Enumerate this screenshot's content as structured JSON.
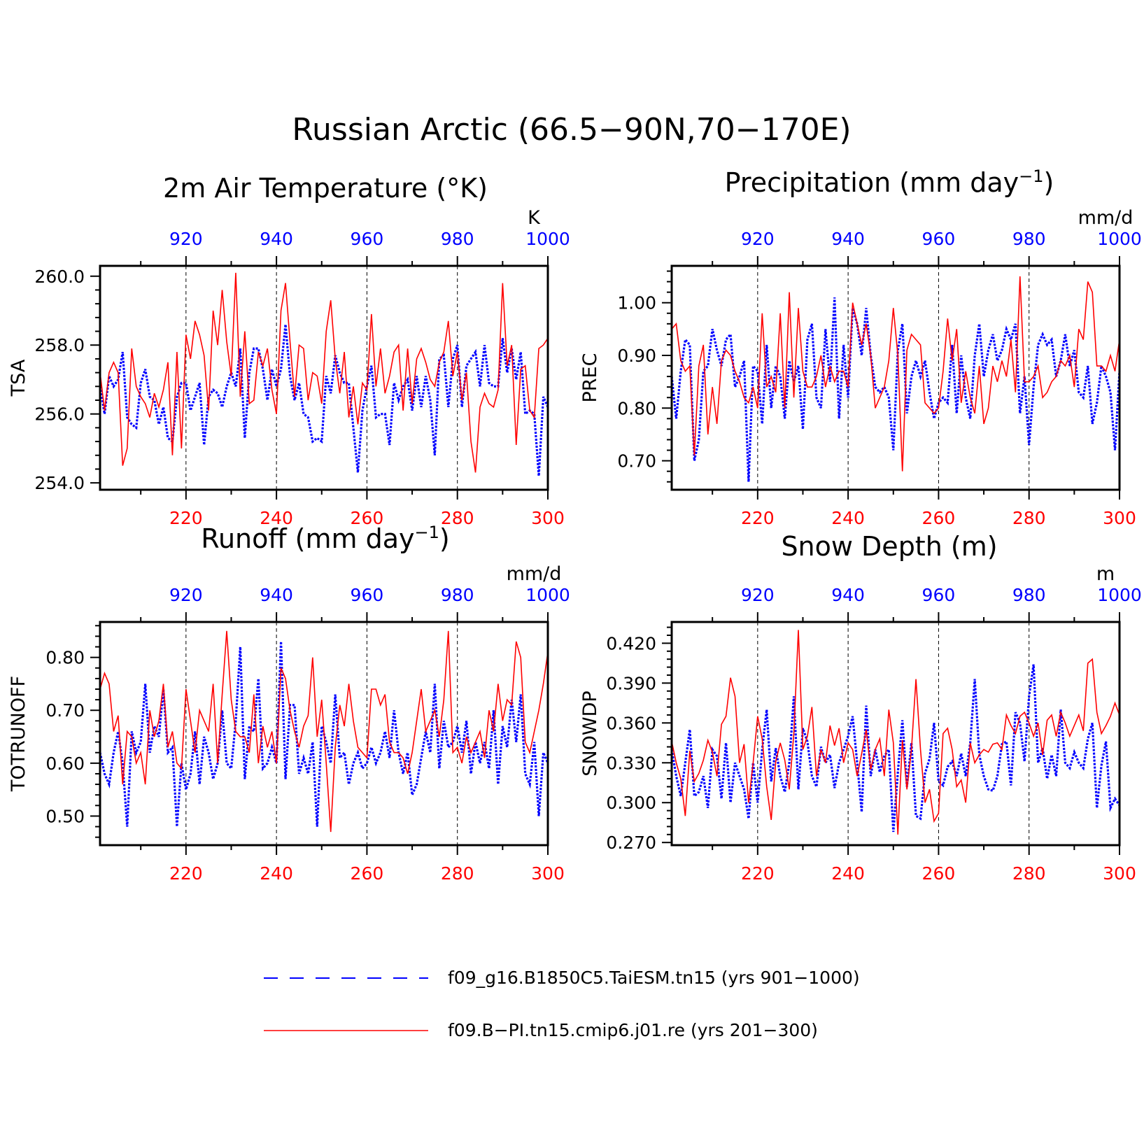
{
  "main_title": "Russian Arctic (66.5−90N,70−170E)",
  "colors": {
    "ctrl": "#0000ff",
    "case": "#ff0000",
    "axis": "#000000"
  },
  "legend": {
    "ctrl_label": "f09_g16.B1850C5.TaiESM.tn15 (yrs 901−1000)",
    "case_label": "f09.B−PI.tn15.cmip6.j01.re (yrs 201−300)"
  },
  "panels": [
    {
      "title": "2m Air Temperature (°K)",
      "ylabel": "TSA",
      "unit": "K"
    },
    {
      "title": "Precipitation (mm day",
      "title_sup": "−1",
      "title_end": ")",
      "ylabel": "PREC",
      "unit": "mm/d"
    },
    {
      "title": "Runoff (mm day",
      "title_sup": "−1",
      "title_end": ")",
      "ylabel": "TOTRUNOFF",
      "unit": "mm/d"
    },
    {
      "title": "Snow Depth (m)",
      "ylabel": "SNOWDP",
      "unit": "m"
    }
  ],
  "chart_data": [
    {
      "type": "line",
      "title": "2m Air Temperature (°K)",
      "ylabel": "TSA",
      "xlim_bottom": [
        201,
        300
      ],
      "xlim_top": [
        901,
        1000
      ],
      "ylim": [
        253.8,
        260.3
      ],
      "yticks": [
        254.0,
        256.0,
        258.0,
        260.0
      ],
      "ytick_labels": [
        "254.0",
        "256.0",
        "258.0",
        "260.0"
      ],
      "xticks_bottom": [
        220,
        240,
        260,
        280,
        300
      ],
      "xticks_top": [
        920,
        940,
        960,
        980,
        1000
      ],
      "series": [
        {
          "name": "f09_g16.B1850C5.TaiESM.tn15 (yrs 901−1000)",
          "axis": "top",
          "style": "dotted",
          "values": [
            256.8,
            256.0,
            257.1,
            256.8,
            257.0,
            257.8,
            255.9,
            255.7,
            255.6,
            256.9,
            257.3,
            256.5,
            256.4,
            255.7,
            256.2,
            255.3,
            255.2,
            256.5,
            256.9,
            256.9,
            256.1,
            256.5,
            256.9,
            255.1,
            256.5,
            256.7,
            256.6,
            256.2,
            256.8,
            257.2,
            256.8,
            257.9,
            255.3,
            257.2,
            257.9,
            257.9,
            257.3,
            256.4,
            257.3,
            256.8,
            257.3,
            258.6,
            257.1,
            256.4,
            256.9,
            256.0,
            255.9,
            255.2,
            255.3,
            255.2,
            257.1,
            256.6,
            257.7,
            257.2,
            256.9,
            256.9,
            255.6,
            254.3,
            256.1,
            256.8,
            257.4,
            255.9,
            256.0,
            256.0,
            255.1,
            256.9,
            256.4,
            256.8,
            257.0,
            256.1,
            257.1,
            256.2,
            257.1,
            256.4,
            254.8,
            257.6,
            257.7,
            256.2,
            257.6,
            258.0,
            256.2,
            257.4,
            257.6,
            257.8,
            256.8,
            258.0,
            256.9,
            256.8,
            256.8,
            258.2,
            257.2,
            257.9,
            257.0,
            257.8,
            256.0,
            256.1,
            256.0,
            254.2,
            256.5,
            256.2
          ]
        },
        {
          "name": "f09.B−PI.tn15.cmip6.j01.re (yrs 201−300)",
          "axis": "bottom",
          "style": "solid",
          "values": [
            257.2,
            256.1,
            257.2,
            257.5,
            257.2,
            254.5,
            255.0,
            257.9,
            256.8,
            256.5,
            256.3,
            255.9,
            256.6,
            256.2,
            256.7,
            257.5,
            254.8,
            257.8,
            255.0,
            258.3,
            257.6,
            258.7,
            258.3,
            257.7,
            256.1,
            259.0,
            258.0,
            259.6,
            258.1,
            257.1,
            260.1,
            256.5,
            258.4,
            256.3,
            256.4,
            257.8,
            257.4,
            257.9,
            256.7,
            256.0,
            259.0,
            259.8,
            258.1,
            256.5,
            258.0,
            257.9,
            256.4,
            257.2,
            257.1,
            256.3,
            258.4,
            259.3,
            257.6,
            256.6,
            257.8,
            255.9,
            256.8,
            255.7,
            256.9,
            256.7,
            258.9,
            256.8,
            257.9,
            256.6,
            257.1,
            257.8,
            258.0,
            256.1,
            257.9,
            256.3,
            257.6,
            257.9,
            257.5,
            257.0,
            256.8,
            257.5,
            257.8,
            258.7,
            257.1,
            257.8,
            256.4,
            257.2,
            255.2,
            254.3,
            256.2,
            256.6,
            256.3,
            256.2,
            256.7,
            259.8,
            257.4,
            258.0,
            255.1,
            257.3,
            257.4,
            256.1,
            255.9,
            257.9,
            258.0,
            258.2
          ]
        }
      ]
    },
    {
      "type": "line",
      "title": "Precipitation (mm day⁻¹)",
      "ylabel": "PREC",
      "xlim_bottom": [
        201,
        300
      ],
      "xlim_top": [
        901,
        1000
      ],
      "ylim": [
        0.645,
        1.07
      ],
      "yticks": [
        0.7,
        0.8,
        0.9,
        1.0
      ],
      "ytick_labels": [
        "0.70",
        "0.80",
        "0.90",
        "1.00"
      ],
      "xticks_bottom": [
        220,
        240,
        260,
        280,
        300
      ],
      "xticks_top": [
        920,
        940,
        960,
        980,
        1000
      ],
      "series": [
        {
          "name": "f09_g16.B1850C5.TaiESM.tn15 (yrs 901−1000)",
          "axis": "top",
          "style": "dotted",
          "values": [
            0.86,
            0.78,
            0.87,
            0.93,
            0.92,
            0.7,
            0.74,
            0.87,
            0.88,
            0.95,
            0.91,
            0.88,
            0.93,
            0.94,
            0.84,
            0.86,
            0.89,
            0.66,
            0.88,
            0.87,
            0.77,
            0.92,
            0.8,
            0.88,
            0.86,
            0.78,
            0.89,
            0.85,
            0.88,
            0.76,
            0.93,
            0.96,
            0.82,
            0.8,
            0.95,
            0.85,
            1.01,
            0.78,
            0.92,
            0.82,
            0.99,
            0.96,
            0.9,
            0.99,
            0.9,
            0.84,
            0.83,
            0.84,
            0.82,
            0.72,
            0.91,
            0.96,
            0.79,
            0.86,
            0.89,
            0.86,
            0.89,
            0.83,
            0.78,
            0.81,
            0.82,
            0.81,
            0.92,
            0.79,
            0.9,
            0.82,
            0.78,
            0.9,
            0.96,
            0.86,
            0.91,
            0.94,
            0.89,
            0.91,
            0.95,
            0.93,
            0.96,
            0.79,
            0.86,
            0.73,
            0.84,
            0.92,
            0.94,
            0.92,
            0.93,
            0.86,
            0.89,
            0.94,
            0.88,
            0.91,
            0.83,
            0.82,
            0.88,
            0.77,
            0.81,
            0.88,
            0.86,
            0.83,
            0.72,
            0.87
          ]
        },
        {
          "name": "f09.B−PI.tn15.cmip6.j01.re (yrs 201−300)",
          "axis": "bottom",
          "style": "solid",
          "values": [
            0.95,
            0.96,
            0.89,
            0.87,
            0.88,
            0.71,
            0.88,
            0.92,
            0.75,
            0.84,
            0.77,
            0.89,
            0.91,
            0.9,
            0.87,
            0.85,
            0.82,
            0.81,
            0.84,
            0.8,
            0.98,
            0.84,
            0.86,
            0.83,
            0.98,
            0.8,
            1.02,
            0.82,
            0.99,
            0.87,
            0.84,
            0.84,
            0.86,
            0.9,
            0.84,
            0.88,
            0.85,
            0.87,
            0.87,
            0.84,
            1.0,
            0.96,
            0.92,
            0.96,
            0.9,
            0.8,
            0.82,
            0.84,
            0.89,
            0.99,
            0.9,
            0.68,
            0.91,
            0.94,
            0.93,
            0.92,
            0.81,
            0.8,
            0.79,
            0.8,
            0.87,
            0.97,
            0.89,
            0.95,
            0.81,
            0.87,
            0.82,
            0.79,
            0.88,
            0.77,
            0.8,
            0.88,
            0.85,
            0.89,
            0.86,
            0.93,
            0.83,
            1.05,
            0.85,
            0.85,
            0.86,
            0.88,
            0.82,
            0.83,
            0.85,
            0.86,
            0.89,
            0.88,
            0.9,
            0.84,
            0.95,
            0.93,
            1.04,
            1.02,
            0.88,
            0.88,
            0.87,
            0.9,
            0.87,
            0.93
          ]
        }
      ]
    },
    {
      "type": "line",
      "title": "Runoff (mm day⁻¹)",
      "ylabel": "TOTRUNOFF",
      "xlim_bottom": [
        201,
        300
      ],
      "xlim_top": [
        901,
        1000
      ],
      "ylim": [
        0.445,
        0.867
      ],
      "yticks": [
        0.5,
        0.6,
        0.7,
        0.8
      ],
      "ytick_labels": [
        "0.50",
        "0.60",
        "0.70",
        "0.80"
      ],
      "xticks_bottom": [
        220,
        240,
        260,
        280,
        300
      ],
      "xticks_top": [
        920,
        940,
        960,
        980,
        1000
      ],
      "series": [
        {
          "name": "f09_g16.B1850C5.TaiESM.tn15 (yrs 901−1000)",
          "axis": "top",
          "style": "dotted",
          "values": [
            0.62,
            0.58,
            0.56,
            0.62,
            0.66,
            0.6,
            0.48,
            0.66,
            0.62,
            0.64,
            0.75,
            0.62,
            0.67,
            0.65,
            0.74,
            0.62,
            0.63,
            0.48,
            0.6,
            0.55,
            0.58,
            0.66,
            0.56,
            0.65,
            0.62,
            0.57,
            0.6,
            0.7,
            0.6,
            0.59,
            0.68,
            0.82,
            0.57,
            0.67,
            0.66,
            0.76,
            0.59,
            0.6,
            0.63,
            0.6,
            0.83,
            0.57,
            0.71,
            0.71,
            0.58,
            0.61,
            0.58,
            0.64,
            0.48,
            0.67,
            0.64,
            0.6,
            0.73,
            0.61,
            0.62,
            0.56,
            0.6,
            0.62,
            0.59,
            0.6,
            0.63,
            0.6,
            0.62,
            0.66,
            0.61,
            0.7,
            0.62,
            0.58,
            0.62,
            0.54,
            0.56,
            0.61,
            0.66,
            0.62,
            0.75,
            0.59,
            0.68,
            0.63,
            0.64,
            0.67,
            0.62,
            0.68,
            0.58,
            0.64,
            0.6,
            0.64,
            0.59,
            0.7,
            0.56,
            0.67,
            0.63,
            0.72,
            0.64,
            0.73,
            0.58,
            0.56,
            0.64,
            0.5,
            0.62,
            0.6
          ]
        },
        {
          "name": "f09.B−PI.tn15.cmip6.j01.re (yrs 201−300)",
          "axis": "bottom",
          "style": "solid",
          "values": [
            0.74,
            0.77,
            0.75,
            0.66,
            0.69,
            0.56,
            0.66,
            0.65,
            0.6,
            0.62,
            0.56,
            0.7,
            0.65,
            0.68,
            0.75,
            0.63,
            0.66,
            0.6,
            0.59,
            0.74,
            0.68,
            0.62,
            0.7,
            0.68,
            0.66,
            0.75,
            0.6,
            0.73,
            0.85,
            0.72,
            0.66,
            0.65,
            0.65,
            0.62,
            0.73,
            0.6,
            0.67,
            0.63,
            0.66,
            0.6,
            0.78,
            0.76,
            0.7,
            0.66,
            0.63,
            0.67,
            0.69,
            0.8,
            0.65,
            0.72,
            0.6,
            0.47,
            0.63,
            0.71,
            0.67,
            0.75,
            0.68,
            0.63,
            0.62,
            0.61,
            0.74,
            0.74,
            0.71,
            0.73,
            0.64,
            0.62,
            0.62,
            0.61,
            0.58,
            0.62,
            0.68,
            0.74,
            0.66,
            0.68,
            0.7,
            0.65,
            0.72,
            0.85,
            0.62,
            0.63,
            0.6,
            0.65,
            0.62,
            0.64,
            0.66,
            0.61,
            0.7,
            0.66,
            0.75,
            0.68,
            0.72,
            0.71,
            0.83,
            0.8,
            0.64,
            0.62,
            0.66,
            0.7,
            0.75,
            0.81
          ]
        }
      ]
    },
    {
      "type": "line",
      "title": "Snow Depth (m)",
      "ylabel": "SNOWDP",
      "xlim_bottom": [
        201,
        300
      ],
      "xlim_top": [
        901,
        1000
      ],
      "ylim": [
        0.268,
        0.436
      ],
      "yticks": [
        0.27,
        0.3,
        0.33,
        0.36,
        0.39,
        0.42
      ],
      "ytick_labels": [
        "0.270",
        "0.300",
        "0.330",
        "0.360",
        "0.390",
        "0.420"
      ],
      "xticks_bottom": [
        220,
        240,
        260,
        280,
        300
      ],
      "xticks_top": [
        920,
        940,
        960,
        980,
        1000
      ],
      "series": [
        {
          "name": "f09_g16.B1850C5.TaiESM.tn15 (yrs 901−1000)",
          "axis": "top",
          "style": "dotted",
          "values": [
            0.34,
            0.32,
            0.305,
            0.33,
            0.355,
            0.305,
            0.308,
            0.32,
            0.296,
            0.34,
            0.335,
            0.303,
            0.345,
            0.3,
            0.33,
            0.32,
            0.31,
            0.288,
            0.33,
            0.3,
            0.34,
            0.37,
            0.316,
            0.341,
            0.32,
            0.308,
            0.33,
            0.38,
            0.31,
            0.356,
            0.346,
            0.32,
            0.312,
            0.342,
            0.33,
            0.336,
            0.311,
            0.33,
            0.34,
            0.35,
            0.365,
            0.33,
            0.293,
            0.373,
            0.32,
            0.34,
            0.323,
            0.335,
            0.34,
            0.278,
            0.323,
            0.362,
            0.312,
            0.345,
            0.29,
            0.288,
            0.322,
            0.333,
            0.36,
            0.316,
            0.313,
            0.327,
            0.331,
            0.32,
            0.337,
            0.32,
            0.345,
            0.393,
            0.336,
            0.32,
            0.31,
            0.309,
            0.32,
            0.344,
            0.346,
            0.313,
            0.368,
            0.36,
            0.331,
            0.38,
            0.404,
            0.33,
            0.341,
            0.318,
            0.336,
            0.32,
            0.37,
            0.33,
            0.326,
            0.338,
            0.33,
            0.326,
            0.348,
            0.36,
            0.296,
            0.328,
            0.346,
            0.296,
            0.303,
            0.298
          ]
        },
        {
          "name": "f09.B−PI.tn15.cmip6.j01.re (yrs 201−300)",
          "axis": "bottom",
          "style": "solid",
          "values": [
            0.346,
            0.33,
            0.318,
            0.29,
            0.339,
            0.316,
            0.322,
            0.332,
            0.347,
            0.338,
            0.32,
            0.359,
            0.365,
            0.394,
            0.38,
            0.33,
            0.344,
            0.3,
            0.33,
            0.365,
            0.348,
            0.312,
            0.287,
            0.331,
            0.345,
            0.332,
            0.31,
            0.352,
            0.43,
            0.34,
            0.35,
            0.372,
            0.32,
            0.34,
            0.33,
            0.358,
            0.343,
            0.356,
            0.33,
            0.345,
            0.34,
            0.32,
            0.337,
            0.355,
            0.325,
            0.34,
            0.348,
            0.32,
            0.37,
            0.345,
            0.276,
            0.347,
            0.31,
            0.34,
            0.393,
            0.34,
            0.3,
            0.31,
            0.286,
            0.292,
            0.352,
            0.356,
            0.34,
            0.312,
            0.317,
            0.3,
            0.345,
            0.33,
            0.336,
            0.34,
            0.338,
            0.344,
            0.345,
            0.34,
            0.366,
            0.358,
            0.352,
            0.365,
            0.368,
            0.36,
            0.35,
            0.36,
            0.336,
            0.362,
            0.366,
            0.35,
            0.368,
            0.36,
            0.35,
            0.358,
            0.366,
            0.354,
            0.405,
            0.408,
            0.368,
            0.352,
            0.358,
            0.365,
            0.375,
            0.366
          ]
        }
      ]
    }
  ]
}
